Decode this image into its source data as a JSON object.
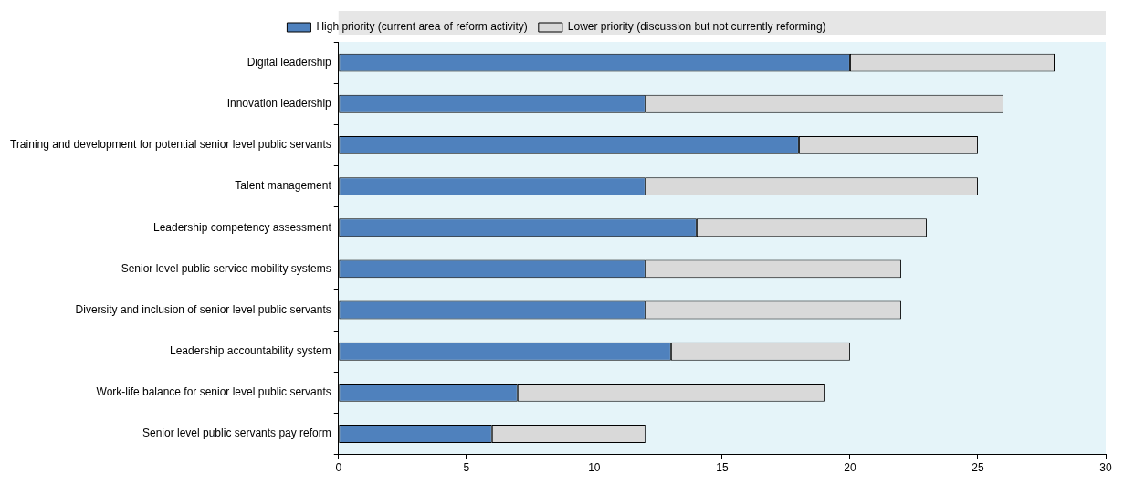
{
  "chart_data": {
    "type": "bar",
    "orientation": "horizontal",
    "stacked": true,
    "categories": [
      "Digital leadership",
      "Innovation leadership",
      "Training and development for potential senior level public servants",
      "Talent management",
      "Leadership competency assessment",
      "Senior level public service mobility systems",
      "Diversity and inclusion of senior level public servants",
      "Leadership accountability system",
      "Work-life balance for senior level public servants",
      "Senior level public servants pay reform"
    ],
    "series": [
      {
        "name": "High priority (current area of reform activity)",
        "color": "#4f81bd",
        "values": [
          20,
          12,
          18,
          12,
          14,
          12,
          12,
          13,
          7,
          6
        ]
      },
      {
        "name": "Lower priority (discussion but not currently reforming)",
        "color": "#d9d9d9",
        "values": [
          8,
          14,
          7,
          13,
          9,
          10,
          10,
          7,
          12,
          6
        ]
      }
    ],
    "xlim": [
      0,
      30
    ],
    "xticks": [
      0,
      5,
      10,
      15,
      20,
      25,
      30
    ],
    "grid": false,
    "legend": "top"
  }
}
